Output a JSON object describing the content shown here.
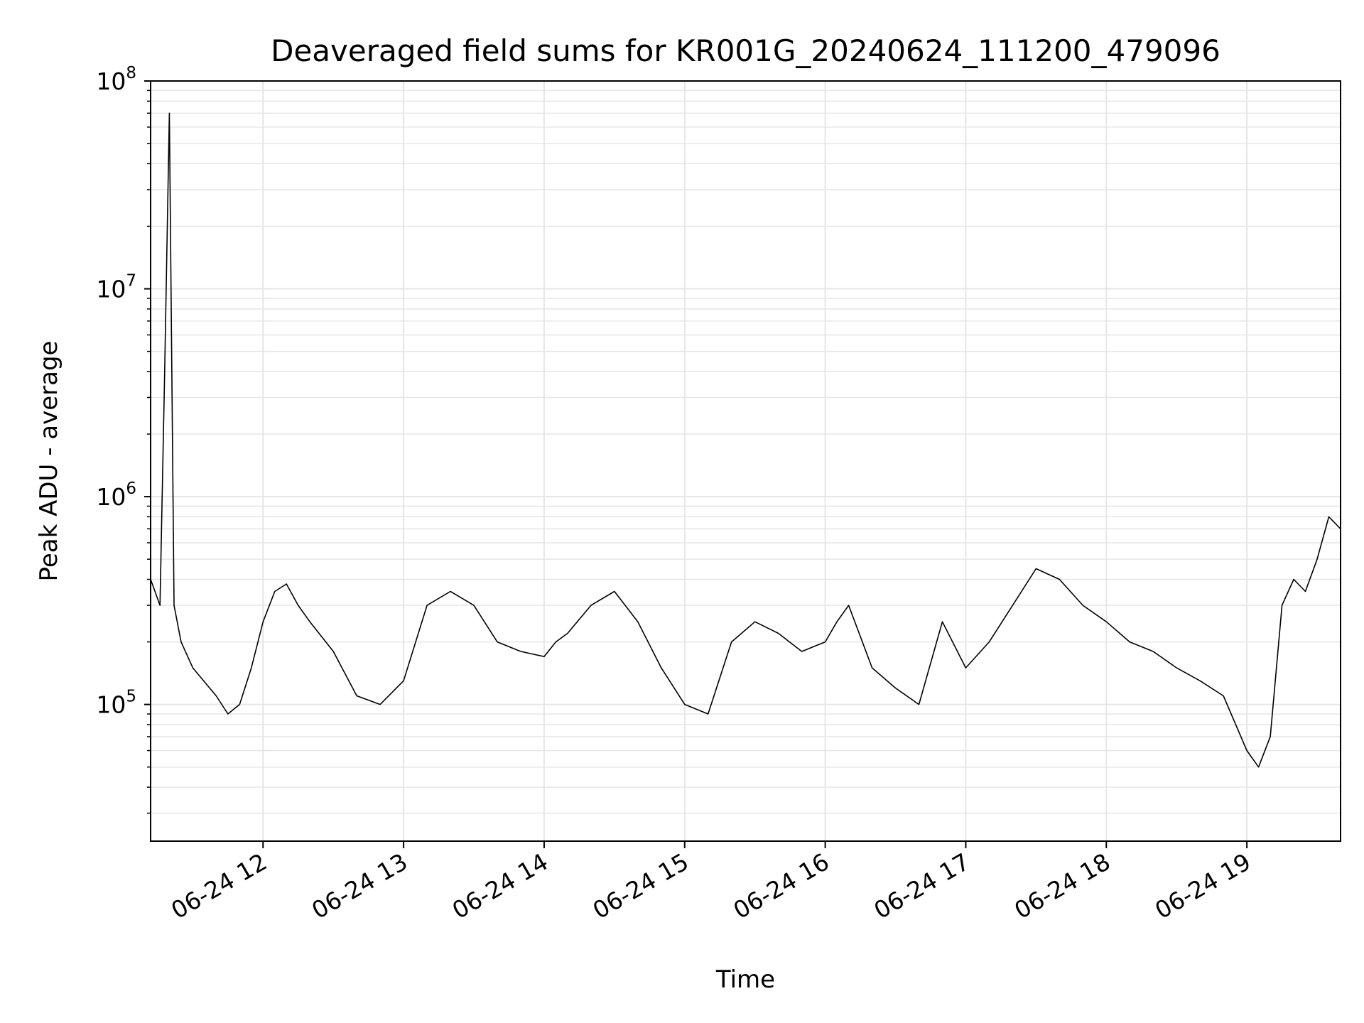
{
  "chart_data": {
    "type": "line",
    "title": "Deaveraged field sums for KR001G_20240624_111200_479096",
    "xlabel": "Time",
    "ylabel": "Peak ADU - average",
    "yscale": "log",
    "grid": true,
    "line_color": "#000000",
    "grid_color": "#e6e6e6",
    "x_tick_labels": [
      "06-24 12",
      "06-24 13",
      "06-24 14",
      "06-24 15",
      "06-24 16",
      "06-24 17",
      "06-24 18",
      "06-24 19"
    ],
    "y_tick_labels": [
      {
        "base": "10",
        "exp": "5"
      },
      {
        "base": "10",
        "exp": "6"
      },
      {
        "base": "10",
        "exp": "7"
      },
      {
        "base": "10",
        "exp": "8"
      }
    ],
    "x_range": [
      "2024-06-24 11:12",
      "2024-06-24 19:40"
    ],
    "ylim": [
      22000,
      100000000
    ],
    "series": [
      {
        "x": [
          "2024-06-24 11:12",
          "2024-06-24 11:16",
          "2024-06-24 11:18",
          "2024-06-24 11:20",
          "2024-06-24 11:22",
          "2024-06-24 11:25",
          "2024-06-24 11:30",
          "2024-06-24 11:40",
          "2024-06-24 11:45",
          "2024-06-24 11:50",
          "2024-06-24 11:55",
          "2024-06-24 12:00",
          "2024-06-24 12:05",
          "2024-06-24 12:10",
          "2024-06-24 12:15",
          "2024-06-24 12:20",
          "2024-06-24 12:30",
          "2024-06-24 12:40",
          "2024-06-24 12:50",
          "2024-06-24 13:00",
          "2024-06-24 13:10",
          "2024-06-24 13:20",
          "2024-06-24 13:30",
          "2024-06-24 13:40",
          "2024-06-24 13:50",
          "2024-06-24 14:00",
          "2024-06-24 14:05",
          "2024-06-24 14:10",
          "2024-06-24 14:20",
          "2024-06-24 14:30",
          "2024-06-24 14:40",
          "2024-06-24 14:50",
          "2024-06-24 15:00",
          "2024-06-24 15:10",
          "2024-06-24 15:20",
          "2024-06-24 15:30",
          "2024-06-24 15:40",
          "2024-06-24 15:50",
          "2024-06-24 16:00",
          "2024-06-24 16:05",
          "2024-06-24 16:10",
          "2024-06-24 16:20",
          "2024-06-24 16:30",
          "2024-06-24 16:40",
          "2024-06-24 16:50",
          "2024-06-24 17:00",
          "2024-06-24 17:10",
          "2024-06-24 17:20",
          "2024-06-24 17:30",
          "2024-06-24 17:40",
          "2024-06-24 17:50",
          "2024-06-24 18:00",
          "2024-06-24 18:10",
          "2024-06-24 18:20",
          "2024-06-24 18:30",
          "2024-06-24 18:40",
          "2024-06-24 18:50",
          "2024-06-24 19:00",
          "2024-06-24 19:05",
          "2024-06-24 19:10",
          "2024-06-24 19:15",
          "2024-06-24 19:20",
          "2024-06-24 19:25",
          "2024-06-24 19:30",
          "2024-06-24 19:35",
          "2024-06-24 19:40"
        ],
        "y": [
          400000,
          300000,
          4000000,
          70000000,
          300000,
          200000,
          150000,
          110000,
          90000,
          100000,
          150000,
          250000,
          350000,
          380000,
          300000,
          250000,
          180000,
          110000,
          100000,
          130000,
          300000,
          350000,
          300000,
          200000,
          180000,
          170000,
          200000,
          220000,
          300000,
          350000,
          250000,
          150000,
          100000,
          90000,
          200000,
          250000,
          220000,
          180000,
          200000,
          250000,
          300000,
          150000,
          120000,
          100000,
          250000,
          150000,
          200000,
          300000,
          450000,
          400000,
          300000,
          250000,
          200000,
          180000,
          150000,
          130000,
          110000,
          60000,
          50000,
          70000,
          300000,
          400000,
          350000,
          500000,
          800000,
          700000
        ]
      }
    ]
  }
}
